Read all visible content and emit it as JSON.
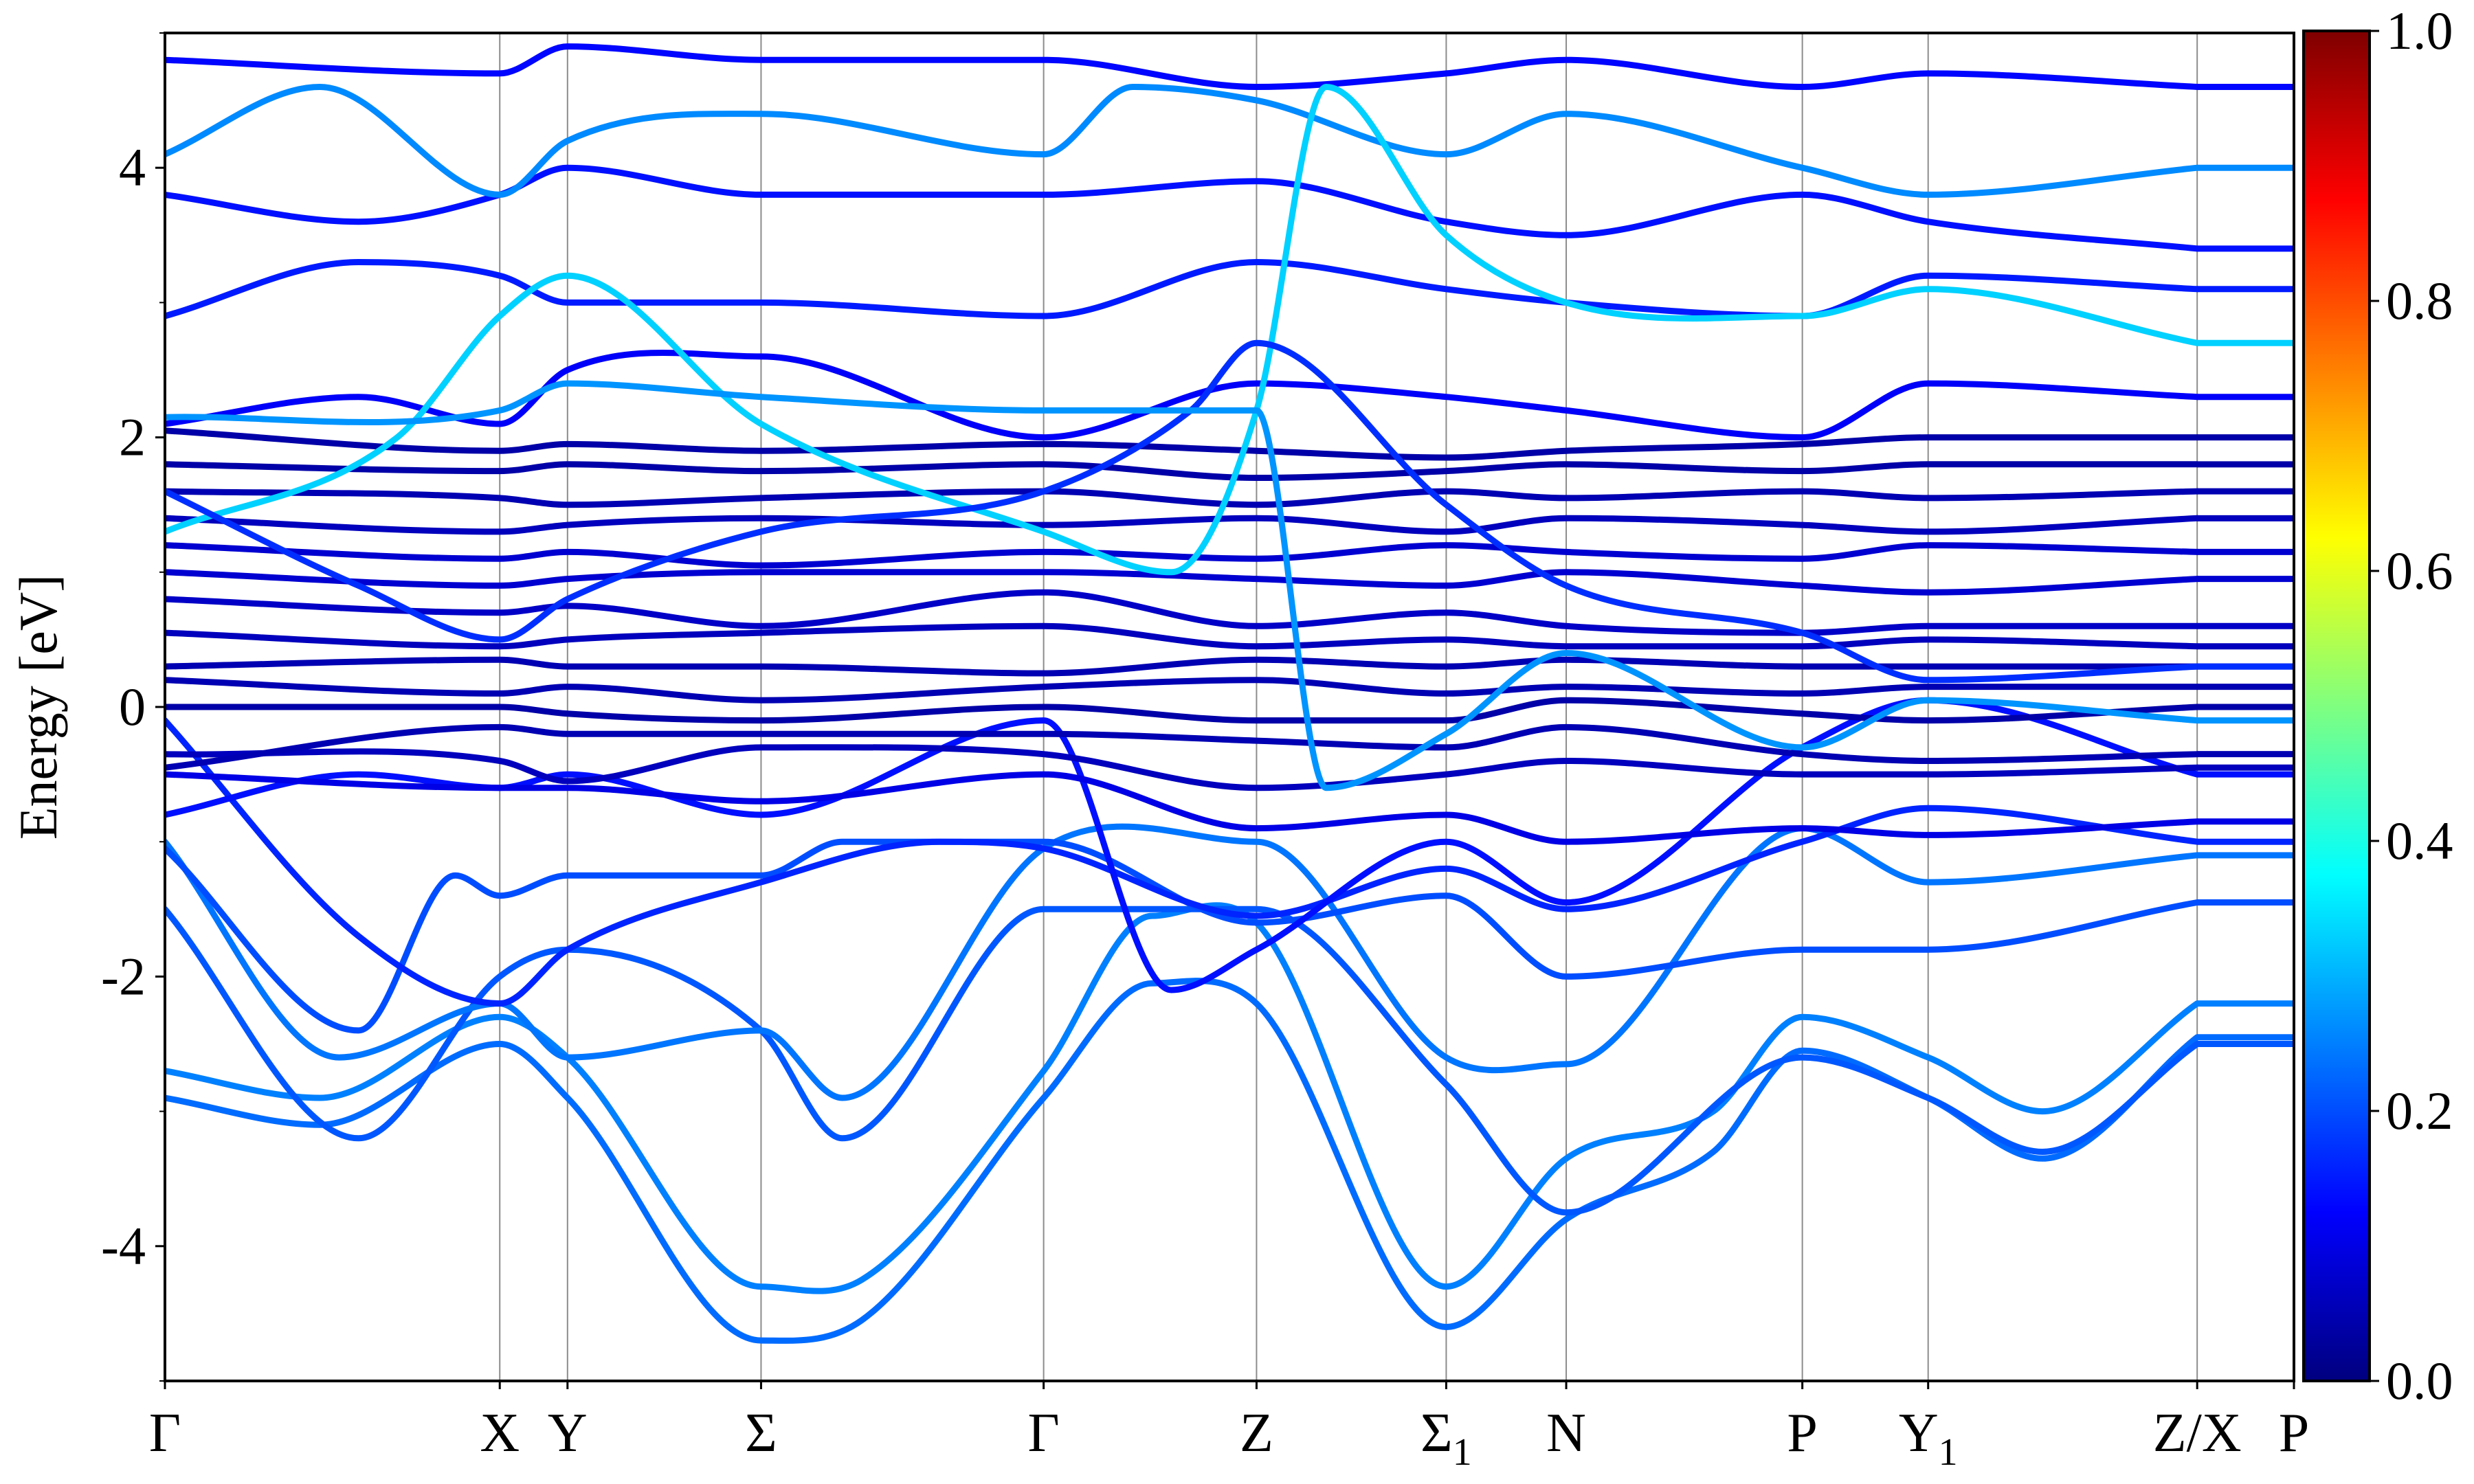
{
  "chart_data": {
    "type": "line",
    "title": "",
    "ylabel": "Energy [eV]",
    "xlabel": "",
    "ylim": [
      -5,
      5
    ],
    "xlim": [
      0,
      11
    ],
    "grid": "vertical lines at high-symmetry points",
    "y_ticks": [
      {
        "value": -4,
        "label": "-4"
      },
      {
        "value": -2,
        "label": "-2"
      },
      {
        "value": 0,
        "label": "0"
      },
      {
        "value": 2,
        "label": "2"
      },
      {
        "value": 4,
        "label": "4"
      }
    ],
    "y_minor_ticks": [
      -5,
      -3,
      -1,
      1,
      3,
      5
    ],
    "kpoints": [
      {
        "x": 0.0,
        "label": "Γ",
        "sub": ""
      },
      {
        "x": 1.73,
        "label": "X",
        "sub": ""
      },
      {
        "x": 2.08,
        "label": "Y",
        "sub": ""
      },
      {
        "x": 3.08,
        "label": "Σ",
        "sub": ""
      },
      {
        "x": 4.54,
        "label": "Γ",
        "sub": ""
      },
      {
        "x": 5.64,
        "label": "Z",
        "sub": ""
      },
      {
        "x": 6.62,
        "label": "Σ",
        "sub": "1"
      },
      {
        "x": 7.24,
        "label": "N",
        "sub": ""
      },
      {
        "x": 8.46,
        "label": "P",
        "sub": ""
      },
      {
        "x": 9.11,
        "label": "Y",
        "sub": "1"
      },
      {
        "x": 10.5,
        "label": "Z/X",
        "sub": ""
      },
      {
        "x": 11.0,
        "label": "P",
        "sub": ""
      }
    ],
    "colorbar": {
      "colormap": "jet",
      "range": [
        0,
        1
      ],
      "ticks": [
        {
          "value": 0.0,
          "label": "0.0"
        },
        {
          "value": 0.2,
          "label": "0.2"
        },
        {
          "value": 0.4,
          "label": "0.4"
        },
        {
          "value": 0.6,
          "label": "0.6"
        },
        {
          "value": 0.8,
          "label": "0.8"
        },
        {
          "value": 1.0,
          "label": "1.0"
        }
      ]
    },
    "series": [
      {
        "weight": 0.23,
        "x": [
          0,
          0.8,
          1.73,
          2.08,
          3.08,
          3.6,
          4.54,
          5.1,
          5.64,
          6.62,
          7.24,
          8.0,
          8.46,
          9.11,
          9.7,
          10.5
        ],
        "y": [
          -2.9,
          -3.1,
          -2.5,
          -2.9,
          -4.7,
          -4.55,
          -2.9,
          -2.05,
          -2.2,
          -4.6,
          -3.8,
          -3.3,
          -2.55,
          -2.9,
          -3.35,
          -2.45
        ]
      },
      {
        "weight": 0.25,
        "x": [
          0,
          0.8,
          1.73,
          2.08,
          3.08,
          3.6,
          4.54,
          5.1,
          5.64,
          6.62,
          7.24,
          8.0,
          8.46,
          9.11,
          9.7,
          10.5
        ],
        "y": [
          -2.7,
          -2.9,
          -2.3,
          -2.6,
          -4.3,
          -4.25,
          -2.7,
          -1.55,
          -1.6,
          -4.3,
          -3.35,
          -3.0,
          -2.3,
          -2.6,
          -3.0,
          -2.2
        ]
      },
      {
        "weight": 0.21,
        "x": [
          0,
          1.0,
          1.73,
          2.08,
          3.08,
          3.5,
          4.54,
          5.64,
          6.62,
          7.24,
          8.46,
          9.11,
          9.7,
          10.5
        ],
        "y": [
          -1.5,
          -3.2,
          -2.0,
          -1.8,
          -2.4,
          -3.2,
          -1.5,
          -1.5,
          -2.8,
          -3.75,
          -2.6,
          -2.9,
          -3.3,
          -2.5
        ]
      },
      {
        "weight": 0.24,
        "x": [
          0,
          0.9,
          1.73,
          2.08,
          3.08,
          3.5,
          4.54,
          5.64,
          6.62,
          7.24,
          8.46,
          9.11,
          10.5
        ],
        "y": [
          -1.0,
          -2.6,
          -2.2,
          -2.6,
          -2.4,
          -2.9,
          -1.05,
          -1.0,
          -2.6,
          -2.65,
          -0.9,
          -1.3,
          -1.1
        ]
      },
      {
        "weight": 0.2,
        "x": [
          0,
          1.0,
          1.5,
          1.73,
          2.08,
          3.08,
          3.5,
          4.54,
          5.64,
          6.62,
          7.24,
          8.46,
          9.11,
          10.5
        ],
        "y": [
          -1.05,
          -2.4,
          -1.25,
          -1.4,
          -1.25,
          -1.25,
          -1.0,
          -1.0,
          -1.6,
          -1.4,
          -2.0,
          -1.8,
          -1.8,
          -1.45
        ]
      },
      {
        "weight": 0.16,
        "x": [
          0,
          1.0,
          1.73,
          2.08,
          3.08,
          4.0,
          4.54,
          5.64,
          6.62,
          7.24,
          8.46,
          9.11,
          10.5
        ],
        "y": [
          -0.1,
          -1.7,
          -2.2,
          -1.8,
          -1.3,
          -1.0,
          -1.05,
          -1.55,
          -1.2,
          -1.5,
          -1.0,
          -0.75,
          -1.0
        ]
      },
      {
        "weight": 0.14,
        "x": [
          0,
          1.0,
          1.73,
          2.08,
          3.08,
          4.54,
          5.2,
          5.64,
          6.62,
          7.24,
          8.46,
          9.11,
          10.5
        ],
        "y": [
          -0.8,
          -0.5,
          -0.6,
          -0.5,
          -0.8,
          -0.1,
          -2.1,
          -1.8,
          -1.0,
          -1.45,
          -0.3,
          0.05,
          -0.5
        ]
      },
      {
        "weight": 0.1,
        "x": [
          0,
          1.73,
          2.08,
          3.08,
          4.54,
          5.64,
          6.62,
          7.24,
          8.46,
          9.11,
          10.5
        ],
        "y": [
          -0.5,
          -0.6,
          -0.6,
          -0.7,
          -0.5,
          -0.9,
          -0.8,
          -1.0,
          -0.9,
          -0.95,
          -0.85
        ]
      },
      {
        "weight": 0.06,
        "x": [
          0,
          1.73,
          2.08,
          3.08,
          4.54,
          5.64,
          6.62,
          7.24,
          8.46,
          9.11,
          10.5
        ],
        "y": [
          -0.35,
          -0.4,
          -0.55,
          -0.3,
          -0.35,
          -0.6,
          -0.5,
          -0.4,
          -0.5,
          -0.5,
          -0.45
        ]
      },
      {
        "weight": 0.05,
        "x": [
          0,
          1.73,
          2.08,
          3.08,
          4.54,
          5.64,
          6.62,
          7.24,
          8.46,
          9.11,
          10.5
        ],
        "y": [
          -0.45,
          -0.15,
          -0.2,
          -0.2,
          -0.2,
          -0.25,
          -0.3,
          -0.15,
          -0.35,
          -0.4,
          -0.35
        ]
      },
      {
        "weight": 0.04,
        "x": [
          0,
          1.73,
          2.08,
          3.08,
          4.54,
          5.64,
          6.62,
          7.24,
          8.46,
          9.11,
          10.5
        ],
        "y": [
          0.0,
          0.0,
          -0.05,
          -0.1,
          0.0,
          -0.1,
          -0.1,
          0.05,
          -0.05,
          -0.1,
          0.0
        ]
      },
      {
        "weight": 0.05,
        "x": [
          0,
          1.73,
          2.08,
          3.08,
          4.54,
          5.64,
          6.62,
          7.24,
          8.46,
          9.11,
          10.5
        ],
        "y": [
          0.2,
          0.1,
          0.15,
          0.05,
          0.15,
          0.2,
          0.1,
          0.15,
          0.1,
          0.15,
          0.15
        ]
      },
      {
        "weight": 0.05,
        "x": [
          0,
          1.73,
          2.08,
          3.08,
          4.54,
          5.64,
          6.62,
          7.24,
          8.46,
          9.11,
          10.5
        ],
        "y": [
          0.3,
          0.35,
          0.3,
          0.3,
          0.25,
          0.35,
          0.3,
          0.35,
          0.3,
          0.3,
          0.3
        ]
      },
      {
        "weight": 0.06,
        "x": [
          0,
          1.73,
          2.08,
          3.08,
          4.54,
          5.64,
          6.62,
          7.24,
          8.46,
          9.11,
          10.5
        ],
        "y": [
          0.55,
          0.45,
          0.5,
          0.55,
          0.6,
          0.45,
          0.5,
          0.45,
          0.45,
          0.5,
          0.45
        ]
      },
      {
        "weight": 0.07,
        "x": [
          0,
          1.73,
          2.08,
          3.08,
          4.54,
          5.64,
          6.62,
          7.24,
          8.46,
          9.11,
          10.5
        ],
        "y": [
          0.8,
          0.7,
          0.75,
          0.6,
          0.85,
          0.6,
          0.7,
          0.6,
          0.55,
          0.6,
          0.6
        ]
      },
      {
        "weight": 0.08,
        "x": [
          0,
          1.73,
          2.08,
          3.08,
          4.54,
          5.64,
          6.62,
          7.24,
          8.46,
          9.11,
          10.5
        ],
        "y": [
          1.0,
          0.9,
          0.95,
          1.0,
          1.0,
          0.95,
          0.9,
          1.0,
          0.9,
          0.85,
          0.95
        ]
      },
      {
        "weight": 0.08,
        "x": [
          0,
          1.73,
          2.08,
          3.08,
          4.54,
          5.64,
          6.62,
          7.24,
          8.46,
          9.11,
          10.5
        ],
        "y": [
          1.2,
          1.1,
          1.15,
          1.05,
          1.15,
          1.1,
          1.2,
          1.15,
          1.1,
          1.2,
          1.15
        ]
      },
      {
        "weight": 0.06,
        "x": [
          0,
          1.73,
          2.08,
          3.08,
          4.54,
          5.64,
          6.62,
          7.24,
          8.46,
          9.11,
          10.5
        ],
        "y": [
          1.4,
          1.3,
          1.35,
          1.4,
          1.35,
          1.4,
          1.3,
          1.4,
          1.35,
          1.3,
          1.4
        ]
      },
      {
        "weight": 0.05,
        "x": [
          0,
          1.73,
          2.08,
          3.08,
          4.54,
          5.64,
          6.62,
          7.24,
          8.46,
          9.11,
          10.5
        ],
        "y": [
          1.6,
          1.55,
          1.5,
          1.55,
          1.6,
          1.5,
          1.6,
          1.55,
          1.6,
          1.55,
          1.6
        ]
      },
      {
        "weight": 0.04,
        "x": [
          0,
          1.73,
          2.08,
          3.08,
          4.54,
          5.64,
          6.62,
          7.24,
          8.46,
          9.11,
          10.5
        ],
        "y": [
          1.8,
          1.75,
          1.8,
          1.75,
          1.8,
          1.7,
          1.75,
          1.8,
          1.75,
          1.8,
          1.8
        ]
      },
      {
        "weight": 0.04,
        "x": [
          0,
          1.73,
          2.08,
          3.08,
          4.54,
          5.64,
          6.62,
          7.24,
          8.46,
          9.11,
          10.5
        ],
        "y": [
          2.05,
          1.9,
          1.95,
          1.9,
          1.95,
          1.9,
          1.85,
          1.9,
          1.95,
          2.0,
          2.0
        ]
      },
      {
        "weight": 0.12,
        "x": [
          0,
          1.0,
          1.73,
          2.08,
          3.08,
          4.54,
          5.64,
          6.62,
          7.24,
          8.46,
          9.11,
          10.5
        ],
        "y": [
          2.1,
          2.3,
          2.1,
          2.5,
          2.6,
          2.0,
          2.4,
          2.3,
          2.2,
          2.0,
          2.4,
          2.3
        ]
      },
      {
        "weight": 0.15,
        "x": [
          0,
          1.0,
          1.73,
          2.08,
          3.08,
          4.54,
          5.64,
          6.62,
          7.24,
          8.46,
          9.11,
          10.5
        ],
        "y": [
          2.9,
          3.3,
          3.2,
          3.0,
          3.0,
          2.9,
          3.3,
          3.1,
          3.0,
          2.9,
          3.2,
          3.1
        ]
      },
      {
        "weight": 0.14,
        "x": [
          0,
          1.0,
          1.73,
          2.08,
          3.08,
          4.54,
          5.64,
          6.62,
          7.24,
          8.46,
          9.11,
          10.5
        ],
        "y": [
          3.8,
          3.6,
          3.8,
          4.0,
          3.8,
          3.8,
          3.9,
          3.6,
          3.5,
          3.8,
          3.6,
          3.4
        ]
      },
      {
        "weight": 0.26,
        "x": [
          0,
          0.8,
          1.73,
          2.08,
          3.08,
          4.54,
          5.0,
          5.64,
          6.62,
          7.24,
          8.46,
          9.11,
          10.5
        ],
        "y": [
          4.1,
          4.6,
          3.8,
          4.2,
          4.4,
          4.1,
          4.6,
          4.5,
          4.1,
          4.4,
          4.0,
          3.8,
          4.0
        ]
      },
      {
        "weight": 0.13,
        "x": [
          0,
          1.73,
          2.08,
          3.08,
          4.54,
          5.64,
          6.62,
          7.24,
          8.46,
          9.11,
          10.5
        ],
        "y": [
          4.8,
          4.7,
          4.9,
          4.8,
          4.8,
          4.6,
          4.7,
          4.8,
          4.6,
          4.7,
          4.6
        ]
      },
      {
        "weight": 0.33,
        "x": [
          0,
          1.2,
          1.73,
          2.08,
          3.08,
          4.54,
          5.2,
          5.64,
          6.0,
          6.62,
          7.24,
          8.46,
          9.11,
          10.5
        ],
        "y": [
          1.3,
          2.0,
          2.9,
          3.2,
          2.1,
          1.3,
          1.0,
          2.2,
          4.6,
          3.5,
          3.0,
          2.9,
          3.1,
          2.7
        ]
      },
      {
        "weight": 0.17,
        "x": [
          0,
          1.0,
          1.73,
          2.08,
          3.08,
          4.54,
          5.3,
          5.64,
          6.62,
          7.24,
          8.46,
          9.11,
          10.5
        ],
        "y": [
          1.6,
          0.9,
          0.5,
          0.8,
          1.3,
          1.6,
          2.2,
          2.7,
          1.5,
          0.9,
          0.55,
          0.2,
          0.3
        ]
      },
      {
        "weight": 0.27,
        "x": [
          0,
          1.73,
          2.08,
          3.08,
          4.54,
          5.64,
          6.0,
          6.62,
          7.24,
          8.46,
          9.11,
          10.5
        ],
        "y": [
          2.15,
          2.2,
          2.4,
          2.3,
          2.2,
          2.2,
          -0.6,
          -0.2,
          0.4,
          -0.3,
          0.05,
          -0.1
        ]
      }
    ]
  }
}
